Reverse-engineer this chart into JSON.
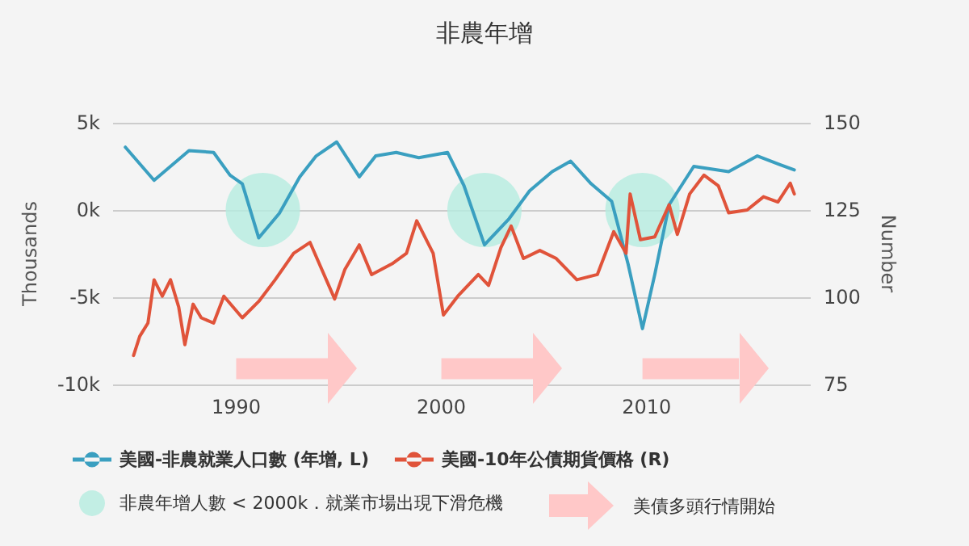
{
  "chart_data": {
    "type": "line",
    "title": "非農年增",
    "ylabel": "Thousands",
    "y2label": "Number",
    "annotations": [
      "美債多頭行情開始"
    ],
    "xlim": [
      1984,
      2018
    ],
    "xticks": [
      1990,
      2000,
      2010
    ],
    "ylim": [
      -10,
      5
    ],
    "yticks": [
      {
        "value": -10,
        "label": "-10k"
      },
      {
        "value": -5,
        "label": "-5k"
      },
      {
        "value": 0,
        "label": "0k"
      },
      {
        "value": 5,
        "label": "5k"
      }
    ],
    "y2lim": [
      75,
      150
    ],
    "y2ticks": [
      75,
      100,
      125,
      150
    ],
    "grid": "y",
    "legend": "bottom",
    "marker": "none",
    "line_style": "solid",
    "bands": [
      {
        "axis": "x",
        "from": 1990,
        "to": 1994.5,
        "color": "#ffc8c8"
      },
      {
        "axis": "x",
        "from": 2000,
        "to": 2004.5,
        "color": "#ffc8c8"
      },
      {
        "axis": "x",
        "from": 2009.8,
        "to": 2014.5,
        "color": "#ffc8c8"
      }
    ],
    "series": [
      {
        "name": "非農年增人數 < 2000k．就業市場出現下滑危機",
        "type": "scatter",
        "marker": "circle",
        "color": "#b5ece0",
        "x": [
          1991.3,
          2002.1,
          2009.8
        ],
        "values": [
          0,
          0,
          0
        ]
      },
      {
        "name": "美國-非農就業人口數 (年增, L)",
        "color": "#3a9fc0",
        "x": [
          1984.6,
          1986.0,
          1987.7,
          1988.9,
          1989.7,
          1990.3,
          1991.1,
          1992.1,
          1993.1,
          1993.9,
          1994.9,
          1996.0,
          1996.8,
          1997.8,
          1998.9,
          2000.3,
          2001.1,
          2002.1,
          2003.3,
          2004.3,
          2005.4,
          2006.3,
          2007.3,
          2008.3,
          2009.1,
          2009.8,
          2010.4,
          2011.1,
          2012.3,
          2014.0,
          2015.4,
          2016.5,
          2017.2
        ],
        "values": [
          3.6,
          1.7,
          3.4,
          3.3,
          2.0,
          1.5,
          -1.6,
          -0.2,
          1.9,
          3.1,
          3.9,
          1.9,
          3.1,
          3.3,
          3.0,
          3.3,
          1.4,
          -2.0,
          -0.5,
          1.1,
          2.2,
          2.8,
          1.5,
          0.5,
          -3.1,
          -6.8,
          -3.7,
          0.3,
          2.5,
          2.2,
          3.1,
          2.6,
          2.3
        ]
      },
      {
        "name": "美國-10年公債期貨價格 (R)",
        "axis": "y2",
        "color": "#e0533a",
        "x": [
          1985.0,
          1985.3,
          1985.7,
          1986.0,
          1986.4,
          1986.8,
          1987.2,
          1987.5,
          1987.9,
          1988.3,
          1988.9,
          1989.4,
          1990.3,
          1991.1,
          1991.9,
          1992.8,
          1993.6,
          1994.8,
          1995.3,
          1996.0,
          1996.6,
          1997.6,
          1998.3,
          1998.8,
          1999.6,
          2000.1,
          2000.8,
          2001.8,
          2002.3,
          2002.9,
          2003.4,
          2004.0,
          2004.8,
          2005.6,
          2006.6,
          2007.6,
          2008.4,
          2009.0,
          2009.2,
          2009.7,
          2010.4,
          2011.1,
          2011.5,
          2012.1,
          2012.8,
          2013.5,
          2014.0,
          2014.9,
          2015.7,
          2016.4,
          2017.0,
          2017.2
        ],
        "values": [
          83.3,
          88.8,
          92.6,
          105.0,
          100.3,
          105.0,
          97.2,
          86.4,
          98.0,
          94.1,
          92.6,
          100.3,
          94.1,
          98.8,
          105.0,
          112.6,
          115.7,
          99.5,
          108.0,
          115.0,
          106.5,
          109.6,
          112.6,
          121.9,
          112.6,
          94.9,
          100.3,
          106.5,
          103.4,
          114.2,
          120.4,
          111.1,
          113.4,
          111.1,
          105.0,
          106.5,
          118.8,
          112.6,
          129.6,
          116.5,
          117.3,
          126.5,
          118.0,
          129.6,
          135.0,
          131.9,
          124.2,
          125.0,
          128.8,
          127.3,
          132.7,
          129.6
        ]
      }
    ]
  }
}
